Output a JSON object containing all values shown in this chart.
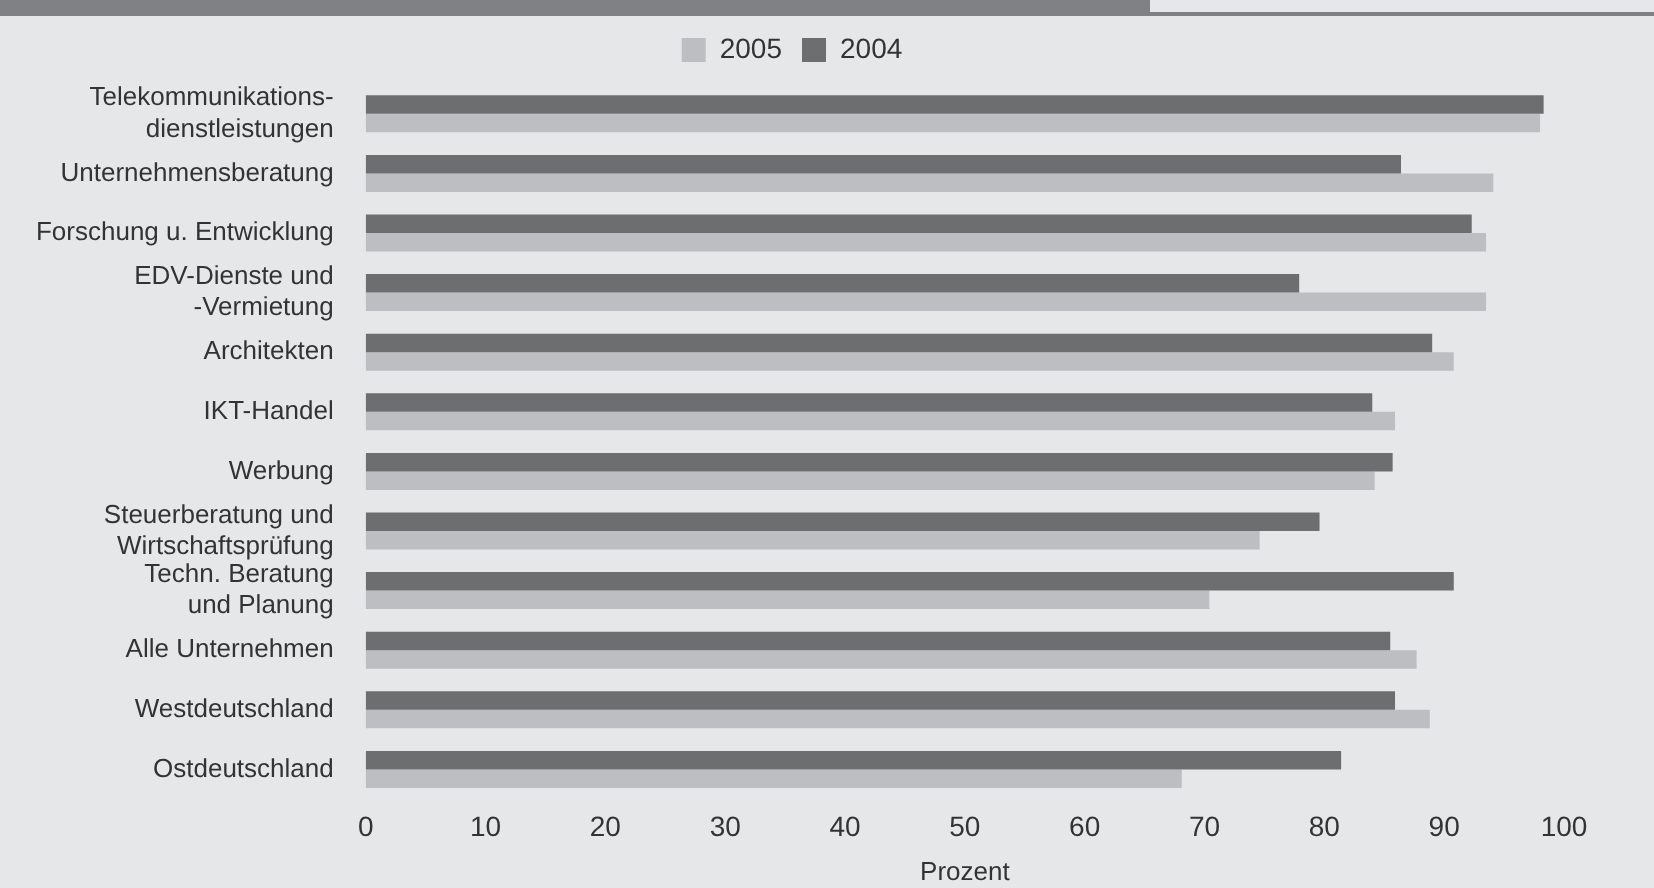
{
  "chart_data": {
    "type": "bar",
    "orientation": "horizontal",
    "xlabel": "Prozent",
    "categories": [
      "Telekommunikations-\ndienstleistungen",
      "Unternehmensberatung",
      "Forschung u. Entwicklung",
      "EDV-Dienste und\n-Vermietung",
      "Architekten",
      "IKT-Handel",
      "Werbung",
      "Steuerberatung und\nWirtschaftsprüfung",
      "Techn. Beratung\nund Planung",
      "Alle Unternehmen",
      "Westdeutschland",
      "Ostdeutschland"
    ],
    "series": [
      {
        "name": "2005",
        "color": "#bdbec1",
        "values": [
          98.0,
          94.1,
          93.5,
          93.5,
          90.8,
          85.9,
          84.2,
          74.6,
          70.4,
          87.7,
          88.8,
          68.1
        ]
      },
      {
        "name": "2004",
        "color": "#6d6e70",
        "values": [
          98.3,
          86.4,
          92.3,
          77.9,
          89.0,
          84.0,
          85.7,
          79.6,
          90.8,
          85.5,
          85.9,
          81.4
        ]
      }
    ],
    "xlim": [
      0,
      100
    ],
    "xticks": [
      0,
      10,
      20,
      30,
      40,
      50,
      60,
      70,
      80,
      90,
      100
    ],
    "grid": false,
    "legend": "top"
  }
}
